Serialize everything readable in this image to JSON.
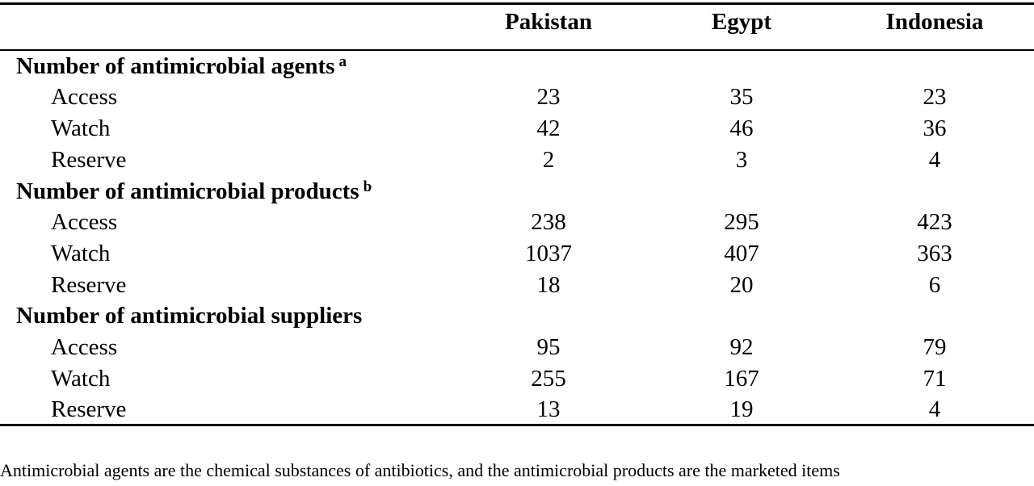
{
  "header": {
    "col1": "Pakistan",
    "col2": "Egypt",
    "col3": "Indonesia"
  },
  "sections": [
    {
      "title": "Number of antimicrobial agents",
      "marker": "a",
      "rows": [
        {
          "label": "Access",
          "pakistan": "23",
          "egypt": "35",
          "indonesia": "23"
        },
        {
          "label": "Watch",
          "pakistan": "42",
          "egypt": "46",
          "indonesia": "36"
        },
        {
          "label": "Reserve",
          "pakistan": "2",
          "egypt": "3",
          "indonesia": "4"
        }
      ]
    },
    {
      "title": "Number of antimicrobial products",
      "marker": "b",
      "rows": [
        {
          "label": "Access",
          "pakistan": "238",
          "egypt": "295",
          "indonesia": "423"
        },
        {
          "label": "Watch",
          "pakistan": "1037",
          "egypt": "407",
          "indonesia": "363"
        },
        {
          "label": "Reserve",
          "pakistan": "18",
          "egypt": "20",
          "indonesia": "6"
        }
      ]
    },
    {
      "title": "Number of antimicrobial suppliers",
      "marker": "",
      "rows": [
        {
          "label": "Access",
          "pakistan": "95",
          "egypt": "92",
          "indonesia": "79"
        },
        {
          "label": "Watch",
          "pakistan": "255",
          "egypt": "167",
          "indonesia": "71"
        },
        {
          "label": "Reserve",
          "pakistan": "13",
          "egypt": "19",
          "indonesia": "4"
        }
      ]
    }
  ],
  "footnote": "Antimicrobial agents are the chemical substances of antibiotics, and the antimicrobial products are the marketed items"
}
